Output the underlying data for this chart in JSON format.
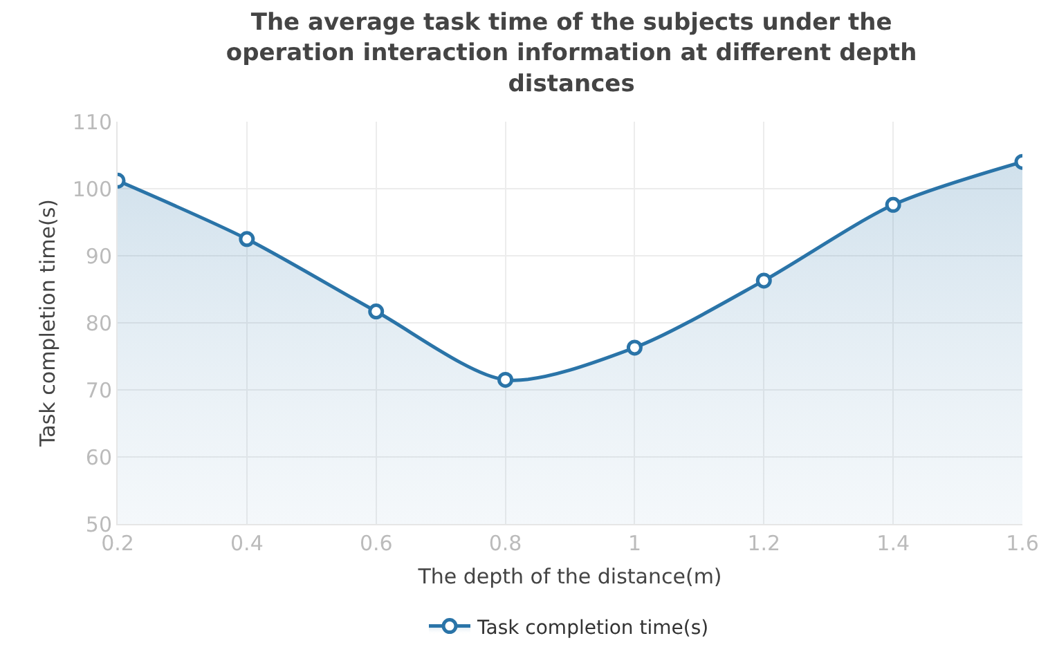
{
  "chart_data": {
    "type": "area",
    "title": "The average task time of the subjects under the operation interaction information at different depth distances",
    "xlabel": "The depth of the distance(m)",
    "ylabel": "Task completion time(s)",
    "x": [
      0.2,
      0.4,
      0.6,
      0.8,
      1,
      1.2,
      1.4,
      1.6
    ],
    "series": [
      {
        "name": "Task completion time(s)",
        "color": "#2a74a8",
        "values": [
          101.2,
          92.5,
          81.7,
          71.5,
          76.3,
          86.3,
          97.6,
          104.0
        ]
      }
    ],
    "xlim": [
      0.2,
      1.6
    ],
    "xticks": [
      0.2,
      0.4,
      0.6,
      0.8,
      1,
      1.2,
      1.4,
      1.6
    ],
    "ylim": [
      50,
      110
    ],
    "yticks": [
      50,
      60,
      70,
      80,
      90,
      100,
      110
    ],
    "grid": true,
    "legend": "bottom",
    "marker": "circle",
    "line_style": "solid"
  }
}
